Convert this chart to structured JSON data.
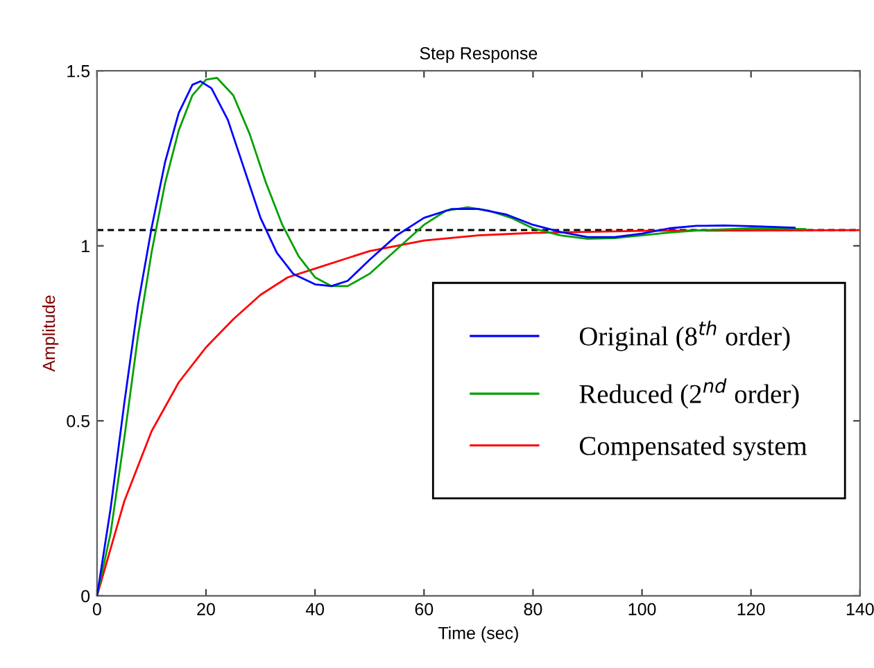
{
  "chart_data": {
    "type": "line",
    "title": "Step Response",
    "xlabel": "Time (sec)",
    "ylabel": "Amplitude",
    "xlim": [
      0,
      140
    ],
    "ylim": [
      0,
      1.5
    ],
    "xticks": [
      0,
      20,
      40,
      60,
      80,
      100,
      120,
      140
    ],
    "yticks": [
      0,
      0.5,
      1,
      1.5
    ],
    "grid": false,
    "legend": "bottom right",
    "marker": "none",
    "line_style": "solid",
    "series": [
      {
        "name": "Original (8$^{th}$ order)",
        "color": "#0000ff",
        "x": [
          0,
          2.5,
          5,
          7.5,
          10,
          12.5,
          15,
          17.5,
          19,
          21,
          24,
          27,
          30,
          33,
          36,
          40,
          43,
          46,
          50,
          55,
          60,
          65,
          70,
          75,
          80,
          85,
          90,
          95,
          100,
          105,
          110,
          115,
          120,
          128
        ],
        "values": [
          0,
          0.25,
          0.55,
          0.83,
          1.05,
          1.24,
          1.38,
          1.46,
          1.47,
          1.45,
          1.36,
          1.22,
          1.08,
          0.98,
          0.92,
          0.89,
          0.885,
          0.9,
          0.96,
          1.03,
          1.08,
          1.105,
          1.105,
          1.09,
          1.06,
          1.04,
          1.025,
          1.025,
          1.035,
          1.05,
          1.057,
          1.058,
          1.056,
          1.052
        ]
      },
      {
        "name": "Reduced (2$^{nd}$ order)",
        "color": "#00a000",
        "x": [
          0,
          2.5,
          5,
          7.5,
          10,
          12.5,
          15,
          17.5,
          20,
          22,
          25,
          28,
          31,
          34,
          37,
          40,
          43,
          46,
          50,
          55,
          60,
          64,
          68,
          72,
          76,
          80,
          85,
          90,
          95,
          100,
          105,
          110,
          120,
          130
        ],
        "values": [
          0,
          0.18,
          0.45,
          0.74,
          0.98,
          1.18,
          1.33,
          1.43,
          1.475,
          1.48,
          1.43,
          1.32,
          1.18,
          1.06,
          0.97,
          0.91,
          0.885,
          0.885,
          0.92,
          0.99,
          1.06,
          1.1,
          1.11,
          1.1,
          1.08,
          1.05,
          1.03,
          1.02,
          1.022,
          1.03,
          1.038,
          1.044,
          1.05,
          1.048
        ]
      },
      {
        "name": "Compensated system",
        "color": "#ff0000",
        "x": [
          0,
          5,
          10,
          15,
          20,
          25,
          30,
          35,
          40,
          50,
          60,
          70,
          80,
          100,
          140
        ],
        "values": [
          0,
          0.27,
          0.47,
          0.61,
          0.71,
          0.79,
          0.86,
          0.91,
          0.935,
          0.985,
          1.015,
          1.03,
          1.037,
          1.043,
          1.045
        ]
      }
    ],
    "ref_lines": [
      {
        "axis": "y",
        "value": 1.045,
        "color": "#000000",
        "line_style": "dashed"
      }
    ]
  }
}
